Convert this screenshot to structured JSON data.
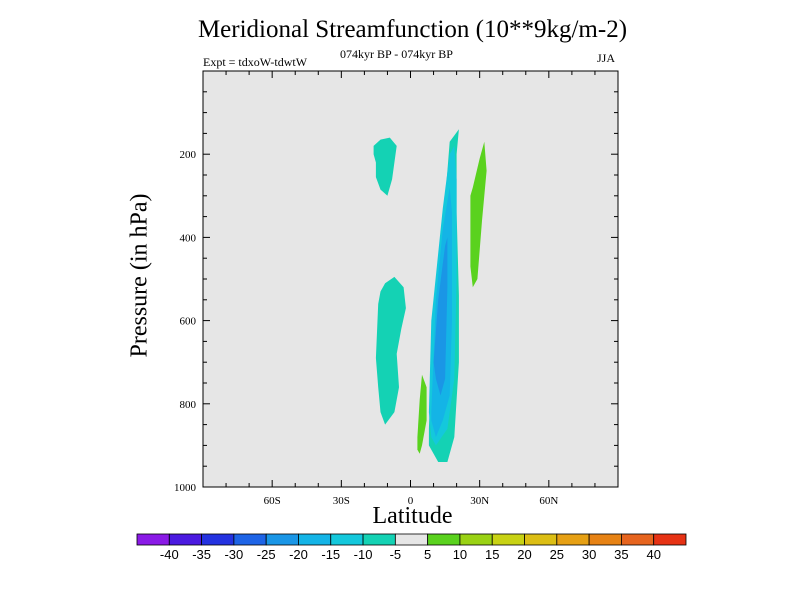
{
  "chart_data": {
    "type": "contour",
    "title": "Meridional Streamfunction (10**9kg/m-2)",
    "subtitle_left": "Expt = tdxoW-tdwtW",
    "subtitle_center": "074kyr BP - 074kyr BP",
    "subtitle_right": "JJA",
    "xlabel": "Latitude",
    "ylabel": "Pressure (in hPa)",
    "xlim": [
      -90,
      90
    ],
    "ylim": [
      1000,
      0
    ],
    "x_ticks": [
      {
        "value": -60,
        "label": "60S"
      },
      {
        "value": -30,
        "label": "30S"
      },
      {
        "value": 0,
        "label": "0"
      },
      {
        "value": 30,
        "label": "30N"
      },
      {
        "value": 60,
        "label": "60N"
      }
    ],
    "y_ticks": [
      {
        "value": 200,
        "label": "200"
      },
      {
        "value": 400,
        "label": "400"
      },
      {
        "value": 600,
        "label": "600"
      },
      {
        "value": 800,
        "label": "800"
      },
      {
        "value": 1000,
        "label": "1000"
      }
    ],
    "background_color": "#e6e6e6",
    "levels": [
      {
        "lower": null,
        "upper": -40,
        "color": "#8a1ae6"
      },
      {
        "lower": -40,
        "upper": -35,
        "color": "#4b1ae0"
      },
      {
        "lower": -35,
        "upper": -30,
        "color": "#2432e0"
      },
      {
        "lower": -30,
        "upper": -25,
        "color": "#1e64e6"
      },
      {
        "lower": -25,
        "upper": -20,
        "color": "#1a96e6"
      },
      {
        "lower": -20,
        "upper": -15,
        "color": "#14b4e6"
      },
      {
        "lower": -15,
        "upper": -10,
        "color": "#14c8dc"
      },
      {
        "lower": -10,
        "upper": -5,
        "color": "#14d2b4"
      },
      {
        "lower": -5,
        "upper": 5,
        "color": "#e6e6e6"
      },
      {
        "lower": 5,
        "upper": 10,
        "color": "#5ad21e"
      },
      {
        "lower": 10,
        "upper": 15,
        "color": "#9ad214"
      },
      {
        "lower": 15,
        "upper": 20,
        "color": "#c8d214"
      },
      {
        "lower": 20,
        "upper": 25,
        "color": "#dcbe14"
      },
      {
        "lower": 25,
        "upper": 30,
        "color": "#e6a014"
      },
      {
        "lower": 30,
        "upper": 35,
        "color": "#e68214"
      },
      {
        "lower": 35,
        "upper": 40,
        "color": "#e6641e"
      },
      {
        "lower": 40,
        "upper": null,
        "color": "#e63214"
      }
    ],
    "colorbar_labels": [
      "-40",
      "-35",
      "-30",
      "-25",
      "-20",
      "-15",
      "-10",
      "-5",
      "5",
      "10",
      "15",
      "20",
      "25",
      "30",
      "35",
      "40"
    ],
    "regions": [
      {
        "name": "neg-upper-left",
        "level": -7.5,
        "lat": [
          -15,
          -16,
          -16,
          -13,
          -9,
          -6,
          -7,
          -8,
          -10,
          -13,
          -15
        ],
        "p": [
          220,
          200,
          180,
          165,
          160,
          180,
          220,
          260,
          300,
          285,
          255
        ]
      },
      {
        "name": "neg-lower-left",
        "level": -7.5,
        "lat": [
          -14,
          -13,
          -11,
          -7,
          -3,
          -2,
          -4,
          -6,
          -5,
          -7,
          -11,
          -13,
          -14,
          -15
        ],
        "p": [
          560,
          530,
          510,
          495,
          520,
          570,
          620,
          680,
          760,
          820,
          850,
          820,
          760,
          690
        ]
      },
      {
        "name": "neg-main-outer",
        "level": -7.5,
        "lat": [
          8,
          9,
          11,
          15,
          17,
          21,
          20,
          20,
          21,
          21,
          19,
          16,
          12,
          8,
          8,
          8
        ],
        "p": [
          860,
          700,
          500,
          310,
          170,
          140,
          200,
          340,
          540,
          700,
          880,
          940,
          940,
          900,
          700,
          400
        ]
      },
      {
        "name": "neg-main-teal",
        "level": -12.5,
        "lat": [
          8,
          9,
          14,
          17,
          19,
          20,
          20,
          19,
          16,
          11,
          9,
          8
        ],
        "p": [
          820,
          600,
          330,
          200,
          180,
          260,
          500,
          740,
          860,
          900,
          880,
          820
        ]
      },
      {
        "name": "neg-main-mid",
        "level": -17.5,
        "lat": [
          9,
          11,
          14,
          17,
          18,
          18,
          17,
          14,
          11,
          9
        ],
        "p": [
          820,
          550,
          380,
          280,
          340,
          600,
          780,
          840,
          880,
          840
        ]
      },
      {
        "name": "neg-main-inner",
        "level": -22.5,
        "lat": [
          10,
          12,
          15,
          16,
          16,
          15,
          13,
          11
        ],
        "p": [
          700,
          550,
          420,
          400,
          520,
          740,
          780,
          740
        ]
      },
      {
        "name": "pos-lower-small",
        "level": 7.5,
        "lat": [
          3,
          4,
          5,
          7,
          7,
          5,
          4,
          3
        ],
        "p": [
          880,
          790,
          730,
          760,
          840,
          900,
          920,
          910
        ]
      },
      {
        "name": "pos-upper-right",
        "level": 7.5,
        "lat": [
          26,
          27,
          30,
          32,
          33,
          32,
          31,
          29,
          27,
          26
        ],
        "p": [
          300,
          280,
          210,
          170,
          240,
          300,
          360,
          500,
          520,
          470
        ]
      }
    ]
  }
}
